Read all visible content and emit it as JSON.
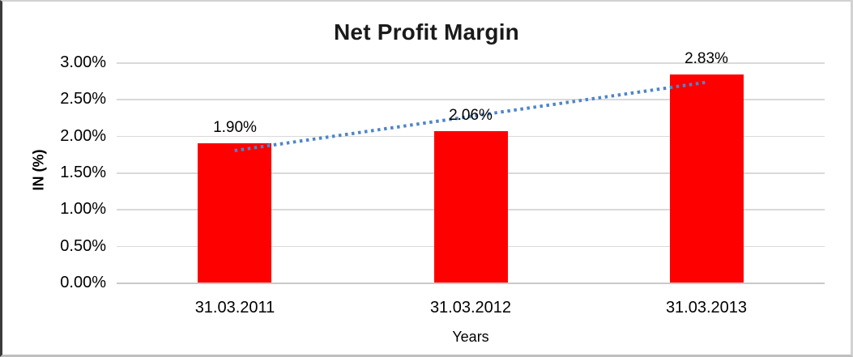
{
  "chart_data": {
    "type": "bar",
    "title": "Net Profit Margin",
    "xlabel": "Years",
    "ylabel": "IN (%)",
    "categories": [
      "31.03.2011",
      "31.03.2012",
      "31.03.2013"
    ],
    "values": [
      1.9,
      2.06,
      2.83
    ],
    "data_labels": [
      "1.90%",
      "2.06%",
      "2.83%"
    ],
    "ylim": [
      0,
      3
    ],
    "ytick_step": 0.5,
    "ytick_labels": [
      "3.00%",
      "2.50%",
      "2.00%",
      "1.50%",
      "1.00%",
      "0.50%",
      "0.00%"
    ],
    "grid": true,
    "legend": false,
    "bar_color": "#ff0000",
    "trendline": {
      "type": "linear",
      "style": "dotted",
      "color": "#4e86c8"
    }
  }
}
